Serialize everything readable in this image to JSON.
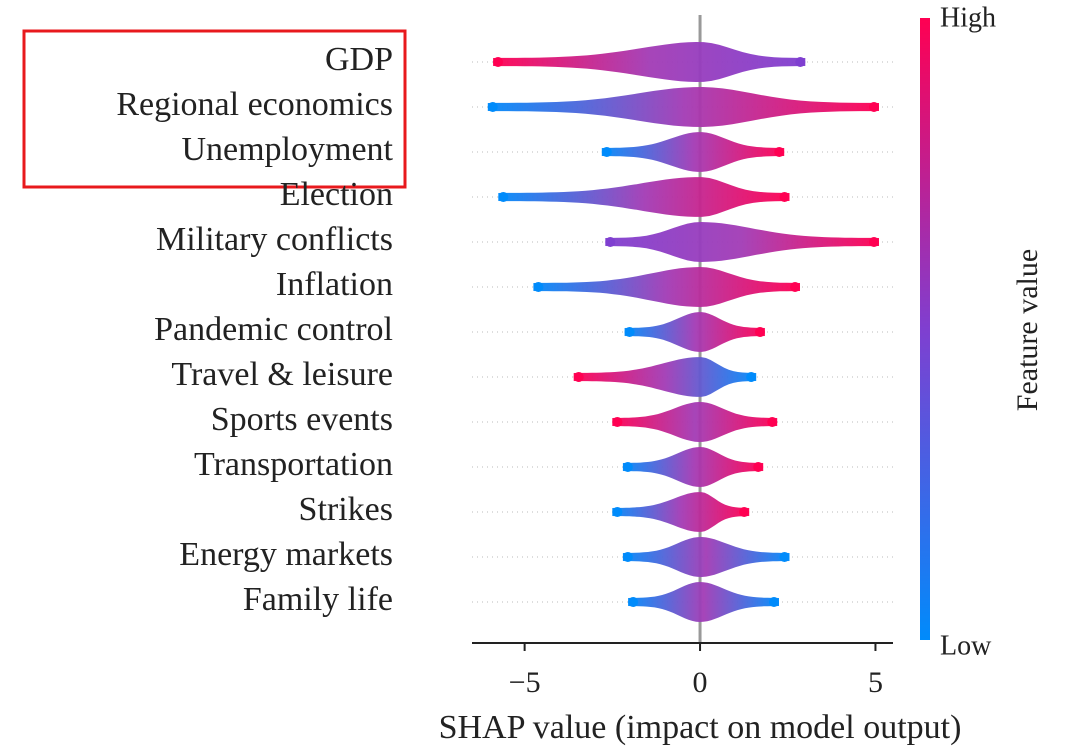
{
  "chart_data": {
    "type": "beeswarm",
    "xlabel": "SHAP value (impact on model output)",
    "colorbar_label": "Feature value",
    "colorbar_high": "High",
    "colorbar_low": "Low",
    "colorbar_colors": [
      "#008bfb",
      "#7f3fd0",
      "#ff0052"
    ],
    "categories": [
      "GDP",
      "Regional economics",
      "Unemployment",
      "Election",
      "Military conflicts",
      "Inflation",
      "Pandemic control",
      "Travel & leisure",
      "Sports events",
      "Transportation",
      "Strikes",
      "Energy markets",
      "Family life"
    ],
    "ranges": [
      [
        -5.9,
        3.0
      ],
      [
        -6.05,
        5.1
      ],
      [
        -2.8,
        2.4
      ],
      [
        -5.75,
        2.55
      ],
      [
        -2.7,
        5.1
      ],
      [
        -4.75,
        2.85
      ],
      [
        -2.15,
        1.85
      ],
      [
        -3.6,
        1.6
      ],
      [
        -2.5,
        2.2
      ],
      [
        -2.2,
        1.8
      ],
      [
        -2.5,
        1.4
      ],
      [
        -2.2,
        2.55
      ],
      [
        -2.05,
        2.25
      ]
    ],
    "colors": [
      [
        "#ff0052",
        "#7f3fd0"
      ],
      [
        "#008bfb",
        "#ff0052"
      ],
      [
        "#008bfb",
        "#ff0052"
      ],
      [
        "#008bfb",
        "#ff0052"
      ],
      [
        "#7f3fd0",
        "#ff0052"
      ],
      [
        "#008bfb",
        "#ff0052"
      ],
      [
        "#008bfb",
        "#ff0052"
      ],
      [
        "#ff0052",
        "#008bfb"
      ],
      [
        "#ff0052",
        "#ff0052"
      ],
      [
        "#008bfb",
        "#ff0052"
      ],
      [
        "#008bfb",
        "#ff0052"
      ],
      [
        "#008bfb",
        "#008bfb"
      ],
      [
        "#008bfb",
        "#008bfb"
      ]
    ],
    "xlim": [
      -6.5,
      5.5
    ],
    "xticks": [
      {
        "value": -5,
        "label": "−5"
      },
      0,
      5
    ]
  }
}
